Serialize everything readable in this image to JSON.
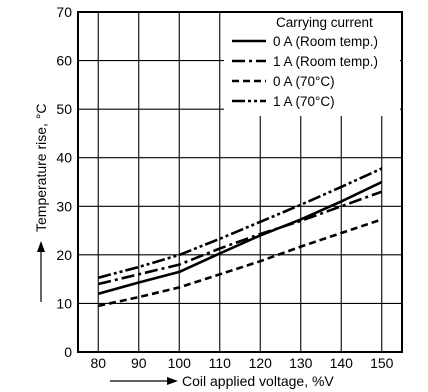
{
  "chart_data": {
    "type": "line",
    "title": "",
    "xlabel": "Coil applied voltage, %V",
    "ylabel": "Temperature rise, °C",
    "x": [
      80,
      90,
      100,
      110,
      120,
      130,
      140,
      150
    ],
    "xlim": [
      75,
      155
    ],
    "ylim": [
      0,
      70
    ],
    "yticks": [
      0,
      10,
      20,
      30,
      40,
      50,
      60,
      70
    ],
    "grid": true,
    "legend": {
      "title": "Carrying current",
      "placement": "top-right"
    },
    "series": [
      {
        "name": "0 A (Room temp.)",
        "style": "solid",
        "points": [
          [
            80,
            12
          ],
          [
            90,
            14.3
          ],
          [
            100,
            16.5
          ],
          [
            110,
            20.3
          ],
          [
            120,
            24
          ],
          [
            130,
            27.3
          ],
          [
            140,
            31
          ],
          [
            150,
            35
          ]
        ]
      },
      {
        "name": "1 A (Room temp.)",
        "style": "dashdot",
        "points": [
          [
            80,
            14
          ],
          [
            90,
            16
          ],
          [
            100,
            18
          ],
          [
            110,
            21.3
          ],
          [
            120,
            24.3
          ],
          [
            130,
            27
          ],
          [
            140,
            30
          ],
          [
            150,
            33
          ]
        ]
      },
      {
        "name": "0 A (70°C)",
        "style": "dashed",
        "points": [
          [
            80,
            9.5
          ],
          [
            90,
            11.3
          ],
          [
            100,
            13.3
          ],
          [
            110,
            16
          ],
          [
            120,
            18.7
          ],
          [
            130,
            21.7
          ],
          [
            140,
            24.5
          ],
          [
            150,
            27.3
          ]
        ]
      },
      {
        "name": "1 A (70°C)",
        "style": "dashdotdot",
        "points": [
          [
            80,
            15.3
          ],
          [
            90,
            17.5
          ],
          [
            100,
            20
          ],
          [
            110,
            23.3
          ],
          [
            120,
            26.8
          ],
          [
            130,
            30.3
          ],
          [
            140,
            34
          ],
          [
            150,
            37.8
          ]
        ]
      }
    ]
  }
}
